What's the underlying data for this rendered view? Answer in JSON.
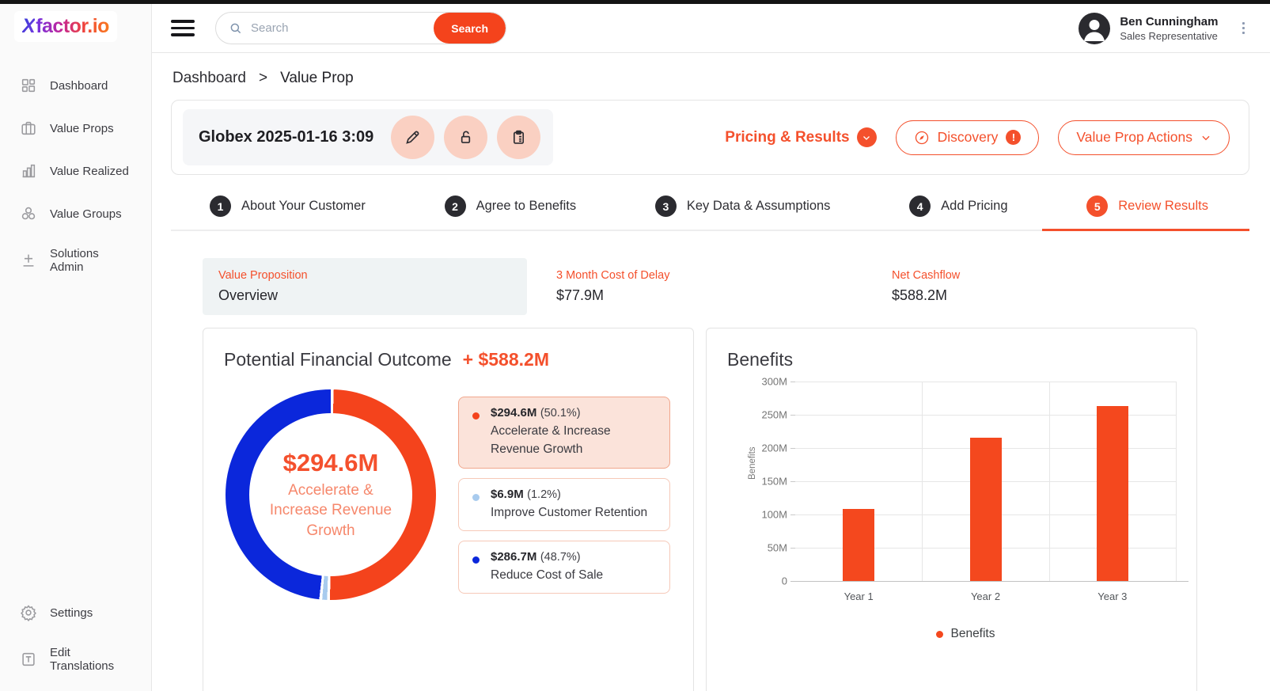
{
  "colors": {
    "accent": "#f4502c",
    "bar": "#f4481e",
    "donut_orange": "#f4431c",
    "donut_lightblue": "#a8cbee",
    "donut_blue": "#0b27db",
    "peach_button": "#fad0c2",
    "stepper_dark": "#2b2b30"
  },
  "sidebar": {
    "logo": {
      "x": "X",
      "rest": "factor.io"
    },
    "items": [
      {
        "label": "Dashboard",
        "icon": "dashboard-grid-icon"
      },
      {
        "label": "Value Props",
        "icon": "briefcase-icon"
      },
      {
        "label": "Value Realized",
        "icon": "bar-chart-icon"
      },
      {
        "label": "Value Groups",
        "icon": "cubes-icon"
      },
      {
        "label": "Solutions Admin",
        "icon": "plus-minus-icon"
      }
    ],
    "bottom_items": [
      {
        "label": "Settings",
        "icon": "gear-icon"
      },
      {
        "label": "Edit Translations",
        "icon": "translate-icon"
      }
    ]
  },
  "topbar": {
    "search": {
      "placeholder": "Search",
      "button": "Search"
    },
    "user": {
      "name": "Ben Cunningham",
      "role": "Sales Representative"
    }
  },
  "breadcrumb": {
    "items": [
      "Dashboard",
      "Value Prop"
    ],
    "separator": ">"
  },
  "header": {
    "title": "Globex 2025-01-16 3:09",
    "pricing_results": "Pricing & Results",
    "discovery": "Discovery",
    "value_prop_actions": "Value Prop Actions"
  },
  "stepper": {
    "steps": [
      {
        "num": "1",
        "label": "About Your Customer"
      },
      {
        "num": "2",
        "label": "Agree to Benefits"
      },
      {
        "num": "3",
        "label": "Key Data & Assumptions"
      },
      {
        "num": "4",
        "label": "Add Pricing"
      },
      {
        "num": "5",
        "label": "Review Results"
      }
    ],
    "active_index": 4
  },
  "stats": {
    "overview": {
      "label": "Value Proposition",
      "value": "Overview"
    },
    "cost_of_delay": {
      "label": "3 Month Cost of Delay",
      "value": "$77.9M"
    },
    "net_cashflow": {
      "label": "Net Cashflow",
      "value": "$588.2M"
    }
  },
  "chart_data": [
    {
      "type": "pie",
      "title": "Potential Financial Outcome",
      "total_label": "+ $588.2M",
      "center": {
        "value": "$294.6M",
        "label": "Accelerate & Increase Revenue Growth"
      },
      "slices": [
        {
          "label": "Accelerate & Increase Revenue Growth",
          "value_label": "$294.6M",
          "pct": 50.1,
          "pct_label": "(50.1%)",
          "color": "#f4431c",
          "selected": true
        },
        {
          "label": "Improve Customer Retention",
          "value_label": "$6.9M",
          "pct": 1.2,
          "pct_label": "(1.2%)",
          "color": "#a8cbee",
          "selected": false
        },
        {
          "label": "Reduce Cost of Sale",
          "value_label": "$286.7M",
          "pct": 48.7,
          "pct_label": "(48.7%)",
          "color": "#0b27db",
          "selected": false
        }
      ]
    },
    {
      "type": "bar",
      "title": "Benefits",
      "categories": [
        "Year 1",
        "Year 2",
        "Year 3"
      ],
      "values": [
        108,
        215,
        263
      ],
      "unit": "M",
      "xlabel": "",
      "ylabel": "Benefits",
      "ylim": [
        0,
        300
      ],
      "ytick_step": 50,
      "grid": true,
      "legend": [
        "Benefits"
      ],
      "legend_position": "bottom",
      "bar_color": "#f4481e"
    }
  ]
}
